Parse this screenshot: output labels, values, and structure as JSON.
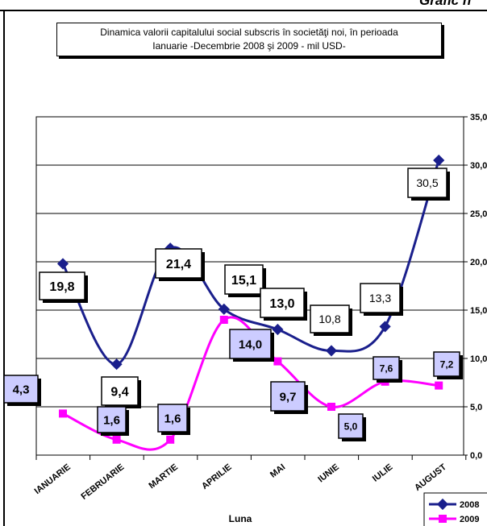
{
  "corner_label": "Grafic n",
  "chart_data": {
    "type": "line",
    "title_line1": "Dinamica  valorii capitalului social subscris în societăţi noi,  în perioada",
    "title_line2": "Ianuarie -Decembrie 2008 şi 2009  - mil  USD-",
    "xlabel": "Luna",
    "ylabel": "",
    "categories": [
      "IANUARIE",
      "FEBRUARIE",
      "MARTIE",
      "APRILIE",
      "MAI",
      "IUNIE",
      "IULIE",
      "AUGUST"
    ],
    "ylim": [
      0,
      35
    ],
    "yticks": [
      "0,0",
      "5,0",
      "10,0",
      "15,0",
      "20,0",
      "25,0",
      "30,0",
      "35,0"
    ],
    "grid": true,
    "legend_position": "bottom-right",
    "series": [
      {
        "name": "2008",
        "color": "#1a1f8c",
        "marker": "diamond",
        "values": [
          19.8,
          9.4,
          21.4,
          15.1,
          13.0,
          10.8,
          13.3,
          30.5
        ],
        "labels": [
          "19,8",
          "9,4",
          "21,4",
          "15,1",
          "13,0",
          "10,8",
          "13,3",
          "30,5"
        ]
      },
      {
        "name": "2009",
        "color": "#ff00ff",
        "marker": "square",
        "values": [
          4.3,
          1.6,
          1.6,
          14.0,
          9.7,
          5.0,
          7.6,
          7.2
        ],
        "labels": [
          "4,3",
          "1,6",
          "1,6",
          "14,0",
          "9,7",
          "5,0",
          "7,6",
          "7,2"
        ]
      }
    ]
  }
}
